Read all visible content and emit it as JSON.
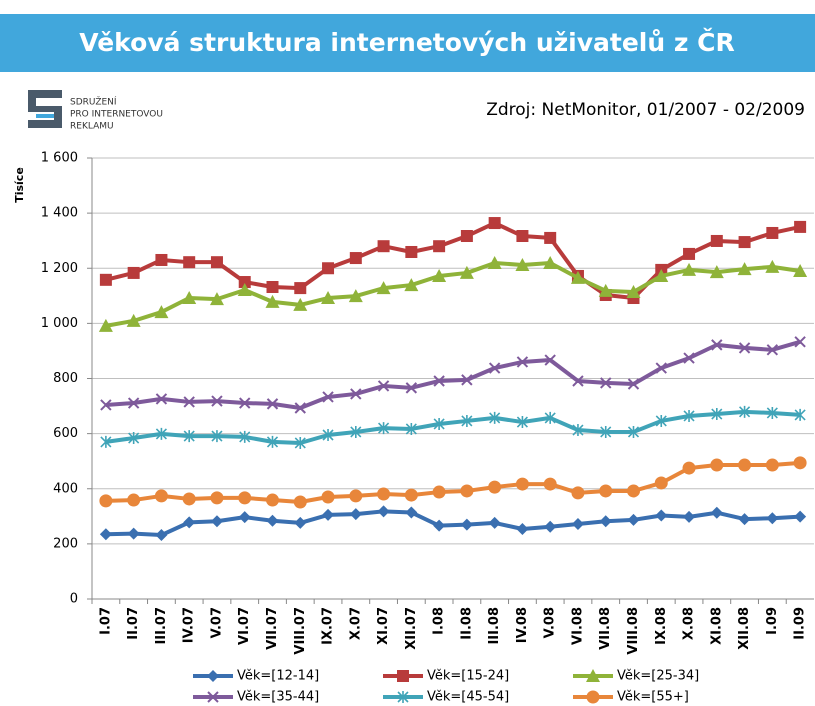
{
  "chart_data": {
    "type": "line",
    "title": "Věková struktura internetových uživatelů z ČR",
    "source": "Zdroj: NetMonitor, 01/2007 - 02/2009",
    "logo": [
      "SDRUŽENÍ",
      "PRO INTERNETOVOU",
      "REKLAMU"
    ],
    "y_label": "Tisíce",
    "categories": [
      "I.07",
      "II.07",
      "III.07",
      "IV.07",
      "V.07",
      "VI.07",
      "VII.07",
      "VIII.07",
      "IX.07",
      "X.07",
      "XI.07",
      "XII.07",
      "I.08",
      "II.08",
      "III.08",
      "IV.08",
      "V.08",
      "VI.08",
      "VII.08",
      "VIII.08",
      "IX.08",
      "X.08",
      "XI.08",
      "XII.08",
      "I.09",
      "II.09"
    ],
    "series": [
      {
        "name": "Věk=[12-14]",
        "color": "#3a6fb0",
        "marker": "diamond",
        "values": [
          235,
          237,
          232,
          278,
          282,
          297,
          284,
          276,
          305,
          308,
          318,
          314,
          266,
          270,
          276,
          254,
          262,
          272,
          282,
          287,
          303,
          298,
          313,
          290,
          293,
          299
        ]
      },
      {
        "name": "Věk=[15-24]",
        "color": "#b83b3b",
        "marker": "square",
        "values": [
          1158,
          1183,
          1230,
          1222,
          1222,
          1150,
          1132,
          1128,
          1200,
          1237,
          1280,
          1259,
          1280,
          1317,
          1364,
          1317,
          1310,
          1172,
          1103,
          1092,
          1194,
          1252,
          1299,
          1295,
          1328,
          1350
        ]
      },
      {
        "name": "Věk=[25-34]",
        "color": "#8fb339",
        "marker": "triangle",
        "values": [
          991,
          1009,
          1041,
          1092,
          1088,
          1121,
          1078,
          1067,
          1092,
          1099,
          1128,
          1139,
          1172,
          1183,
          1219,
          1212,
          1219,
          1165,
          1118,
          1114,
          1172,
          1194,
          1186,
          1197,
          1205,
          1190
        ]
      },
      {
        "name": "Věk=[35-44]",
        "color": "#7e5a9b",
        "marker": "x",
        "values": [
          704,
          711,
          726,
          715,
          718,
          711,
          708,
          693,
          733,
          744,
          773,
          766,
          791,
          795,
          838,
          860,
          867,
          791,
          784,
          780,
          838,
          874,
          922,
          911,
          904,
          933
        ]
      },
      {
        "name": "Věk=[45-54]",
        "color": "#40a4b8",
        "marker": "star",
        "values": [
          570,
          584,
          599,
          591,
          591,
          588,
          570,
          566,
          595,
          606,
          620,
          617,
          635,
          646,
          657,
          642,
          657,
          613,
          606,
          606,
          646,
          664,
          671,
          679,
          675,
          668
        ]
      },
      {
        "name": "Věk=[55+]",
        "color": "#e8863a",
        "marker": "circle",
        "values": [
          356,
          359,
          374,
          363,
          367,
          367,
          359,
          352,
          370,
          374,
          381,
          377,
          388,
          392,
          406,
          417,
          417,
          385,
          392,
          392,
          421,
          475,
          486,
          486,
          486,
          494
        ]
      }
    ],
    "ylim": [
      0,
      1600
    ],
    "yticks": [
      0,
      200,
      400,
      600,
      800,
      {
        "value": 1000,
        "label": "1 000"
      },
      {
        "value": 1200,
        "label": "1 200"
      },
      {
        "value": 1400,
        "label": "1 400"
      },
      {
        "value": 1600,
        "label": "1 600"
      }
    ],
    "grid": true,
    "legend_position": "bottom"
  }
}
